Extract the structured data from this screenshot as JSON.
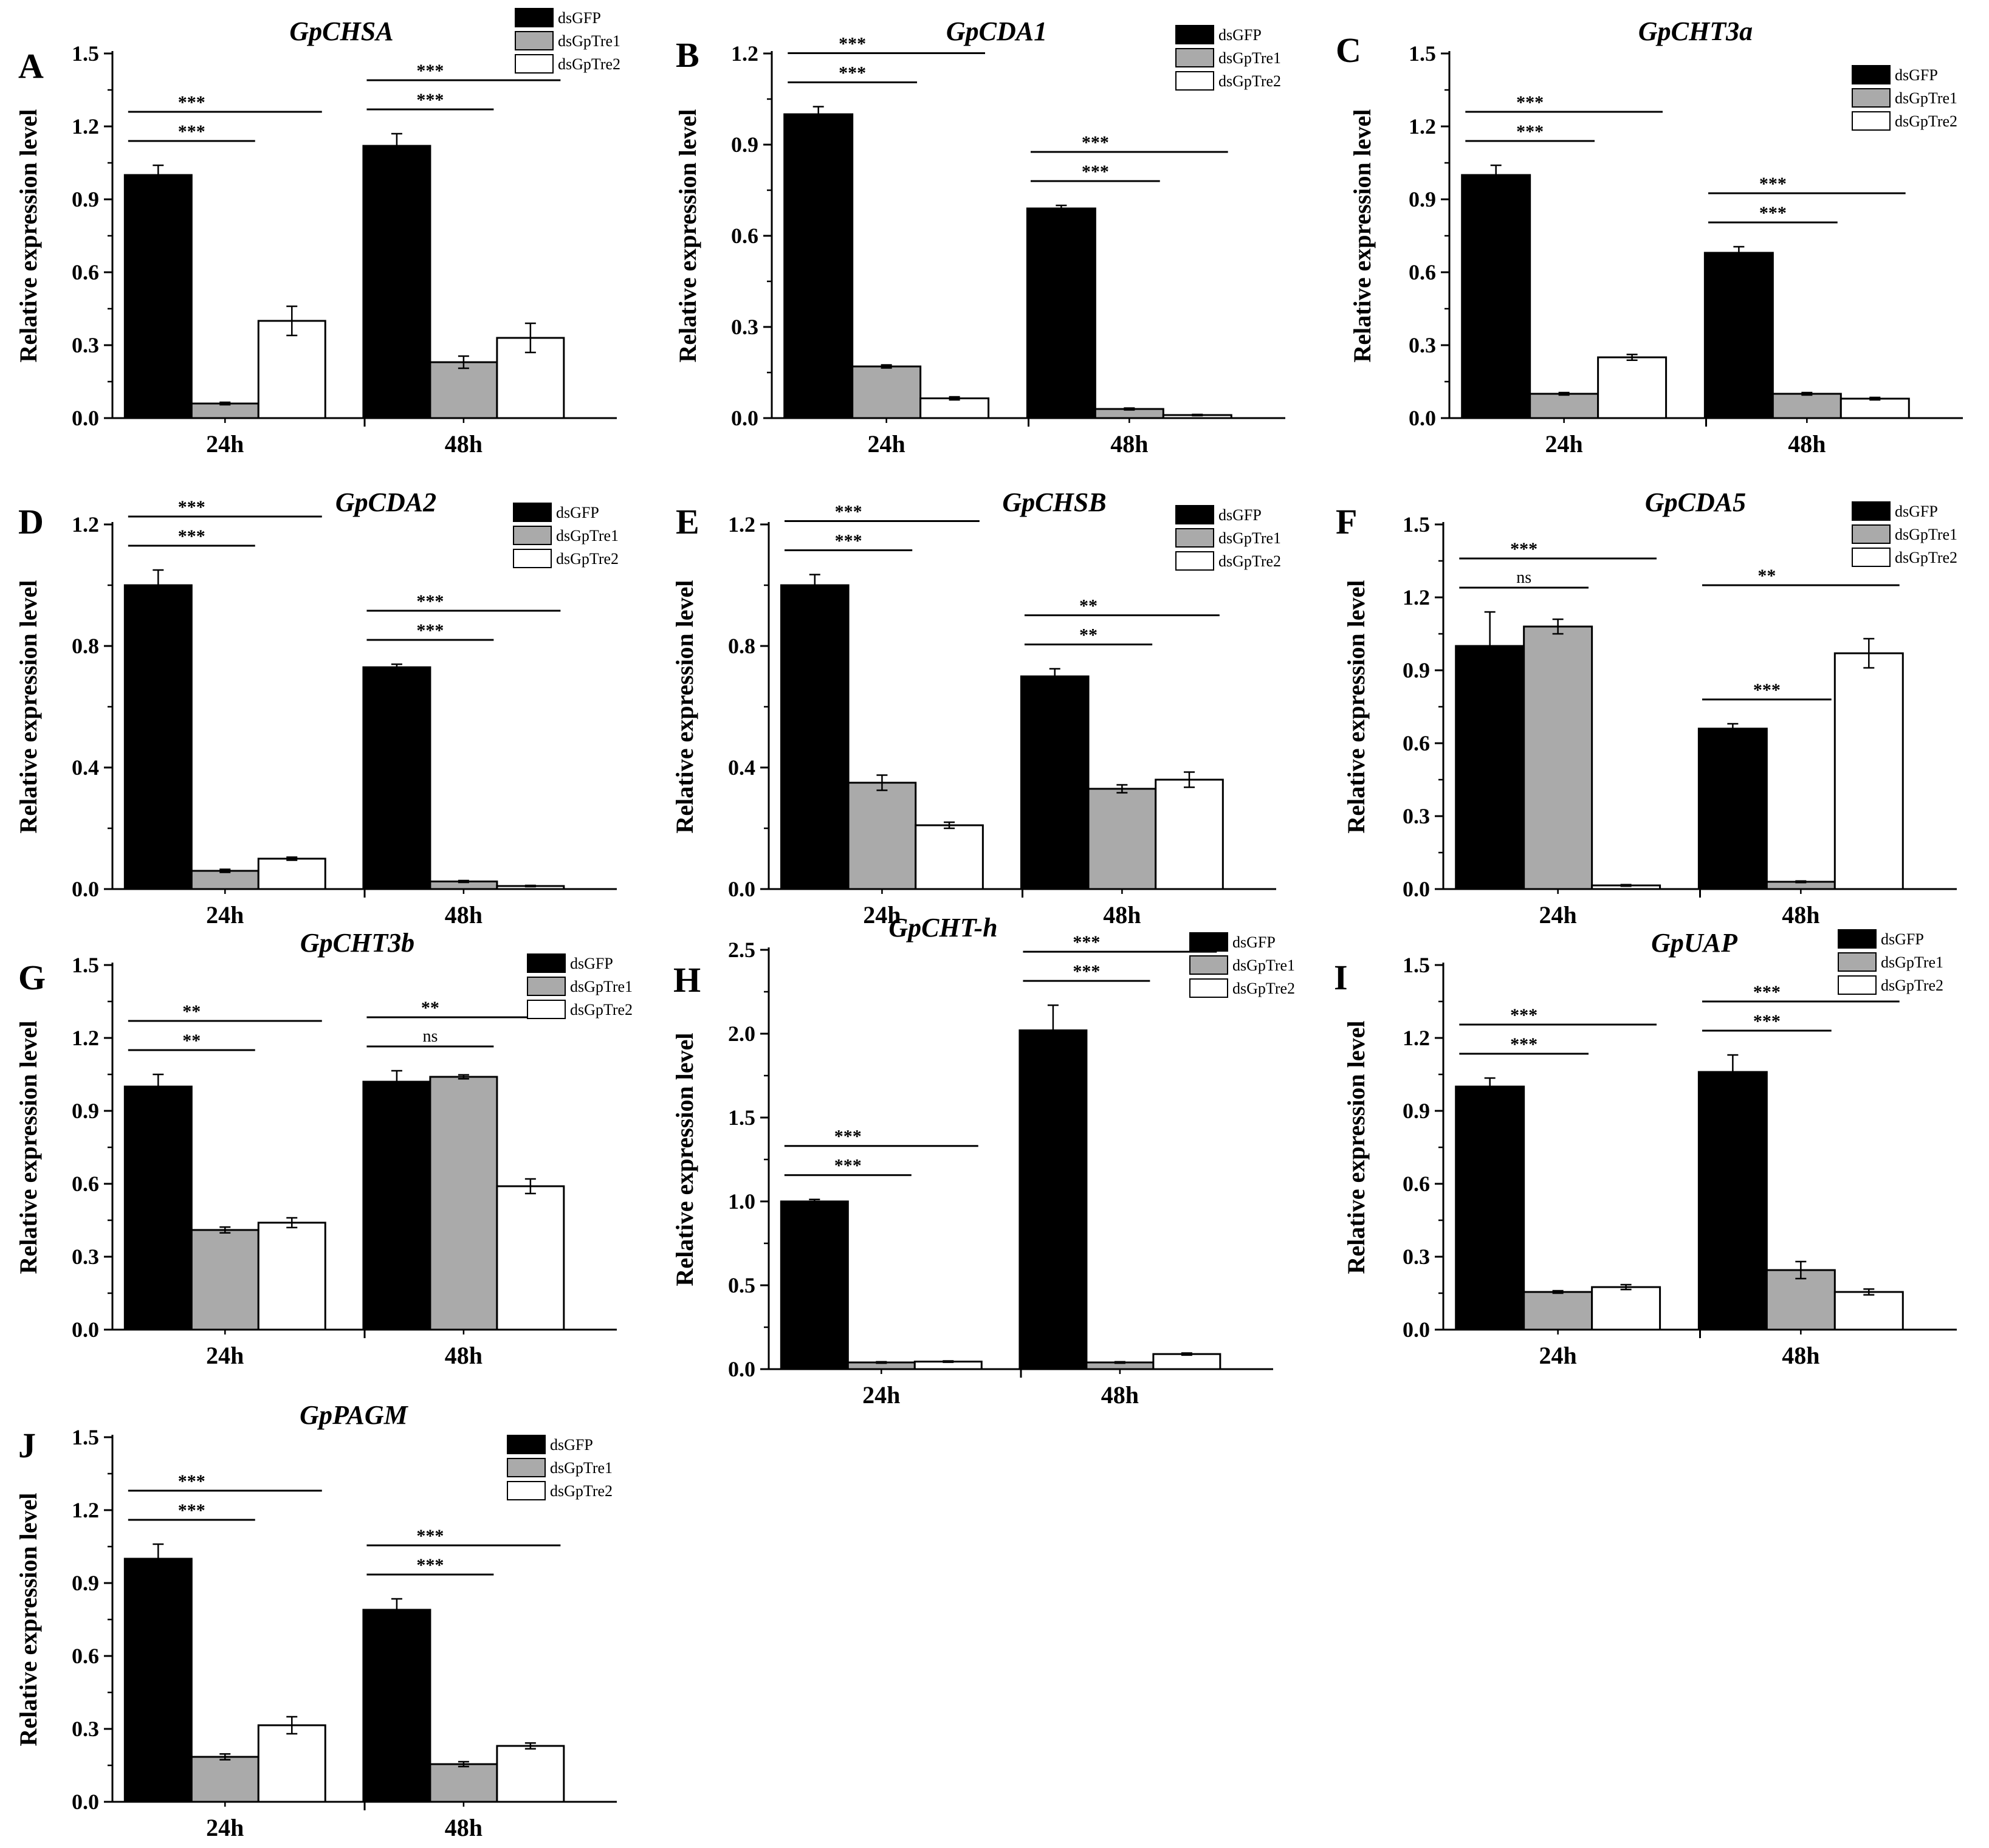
{
  "figure": {
    "series_names": [
      "dsGFP",
      "dsGpTre1",
      "dsGpTre2"
    ],
    "series_colors": [
      "#000000",
      "#aaaaaa",
      "#ffffff"
    ],
    "categories": [
      "24h",
      "48h"
    ],
    "ylabel": "Relative expression level"
  },
  "chart_data": [
    {
      "type": "bar",
      "letter": "A",
      "title": "GpCHSA",
      "xlabel": "",
      "ylabel": "Relative expression level",
      "categories": [
        "24h",
        "48h"
      ],
      "ylim": [
        0,
        1.5
      ],
      "yticks": [
        "0.0",
        "0.3",
        "0.6",
        "0.9",
        "1.2",
        "1.5"
      ],
      "series": [
        {
          "name": "dsGFP",
          "values": [
            1.0,
            1.12
          ],
          "errors": [
            0.04,
            0.05
          ]
        },
        {
          "name": "dsGpTre1",
          "values": [
            0.06,
            0.23
          ],
          "errors": [
            0.005,
            0.025
          ]
        },
        {
          "name": "dsGpTre2",
          "values": [
            0.4,
            0.33
          ],
          "errors": [
            0.06,
            0.06
          ]
        }
      ],
      "significance": [
        {
          "group": 0,
          "target": 1,
          "label": "***"
        },
        {
          "group": 0,
          "target": 2,
          "label": "***"
        },
        {
          "group": 1,
          "target": 1,
          "label": "***"
        },
        {
          "group": 1,
          "target": 2,
          "label": "***"
        }
      ]
    },
    {
      "type": "bar",
      "letter": "B",
      "title": "GpCDA1",
      "xlabel": "",
      "ylabel": "Relative expression level",
      "categories": [
        "24h",
        "48h"
      ],
      "ylim": [
        0,
        1.2
      ],
      "yticks": [
        "0.0",
        "0.3",
        "0.6",
        "0.9",
        "1.2"
      ],
      "series": [
        {
          "name": "dsGFP",
          "values": [
            1.0,
            0.69
          ],
          "errors": [
            0.025,
            0.01
          ]
        },
        {
          "name": "dsGpTre1",
          "values": [
            0.17,
            0.03
          ],
          "errors": [
            0.005,
            0.003
          ]
        },
        {
          "name": "dsGpTre2",
          "values": [
            0.065,
            0.01
          ],
          "errors": [
            0.005,
            0.002
          ]
        }
      ],
      "significance": [
        {
          "group": 0,
          "target": 1,
          "label": "***"
        },
        {
          "group": 0,
          "target": 2,
          "label": "***"
        },
        {
          "group": 1,
          "target": 1,
          "label": "***"
        },
        {
          "group": 1,
          "target": 2,
          "label": "***"
        }
      ]
    },
    {
      "type": "bar",
      "letter": "C",
      "title": "GpCHT3a",
      "xlabel": "",
      "ylabel": "Relative expression level",
      "categories": [
        "24h",
        "48h"
      ],
      "ylim": [
        0,
        1.5
      ],
      "yticks": [
        "0.0",
        "0.3",
        "0.6",
        "0.9",
        "1.2",
        "1.5"
      ],
      "series": [
        {
          "name": "dsGFP",
          "values": [
            1.0,
            0.68
          ],
          "errors": [
            0.04,
            0.025
          ]
        },
        {
          "name": "dsGpTre1",
          "values": [
            0.1,
            0.1
          ],
          "errors": [
            0.005,
            0.005
          ]
        },
        {
          "name": "dsGpTre2",
          "values": [
            0.25,
            0.08
          ],
          "errors": [
            0.012,
            0.005
          ]
        }
      ],
      "significance": [
        {
          "group": 0,
          "target": 1,
          "label": "***"
        },
        {
          "group": 0,
          "target": 2,
          "label": "***"
        },
        {
          "group": 1,
          "target": 1,
          "label": "***"
        },
        {
          "group": 1,
          "target": 2,
          "label": "***"
        }
      ]
    },
    {
      "type": "bar",
      "letter": "D",
      "title": "GpCDA2",
      "xlabel": "",
      "ylabel": "Relative expression level",
      "categories": [
        "24h",
        "48h"
      ],
      "ylim": [
        0,
        1.2
      ],
      "yticks": [
        "0.0",
        "0.4",
        "0.8",
        "1.2"
      ],
      "series": [
        {
          "name": "dsGFP",
          "values": [
            1.0,
            0.73
          ],
          "errors": [
            0.05,
            0.01
          ]
        },
        {
          "name": "dsGpTre1",
          "values": [
            0.06,
            0.025
          ],
          "errors": [
            0.005,
            0.003
          ]
        },
        {
          "name": "dsGpTre2",
          "values": [
            0.1,
            0.01
          ],
          "errors": [
            0.005,
            0.002
          ]
        }
      ],
      "significance": [
        {
          "group": 0,
          "target": 1,
          "label": "***"
        },
        {
          "group": 0,
          "target": 2,
          "label": "***"
        },
        {
          "group": 1,
          "target": 1,
          "label": "***"
        },
        {
          "group": 1,
          "target": 2,
          "label": "***"
        }
      ]
    },
    {
      "type": "bar",
      "letter": "E",
      "title": "GpCHSB",
      "xlabel": "",
      "ylabel": "Relative expression level",
      "categories": [
        "24h",
        "48h"
      ],
      "ylim": [
        0,
        1.2
      ],
      "yticks": [
        "0.0",
        "0.4",
        "0.8",
        "1.2"
      ],
      "series": [
        {
          "name": "dsGFP",
          "values": [
            1.0,
            0.7
          ],
          "errors": [
            0.035,
            0.025
          ]
        },
        {
          "name": "dsGpTre1",
          "values": [
            0.35,
            0.33
          ],
          "errors": [
            0.025,
            0.013
          ]
        },
        {
          "name": "dsGpTre2",
          "values": [
            0.21,
            0.36
          ],
          "errors": [
            0.01,
            0.025
          ]
        }
      ],
      "significance": [
        {
          "group": 0,
          "target": 1,
          "label": "***"
        },
        {
          "group": 0,
          "target": 2,
          "label": "***"
        },
        {
          "group": 1,
          "target": 1,
          "label": "**"
        },
        {
          "group": 1,
          "target": 2,
          "label": "**"
        }
      ]
    },
    {
      "type": "bar",
      "letter": "F",
      "title": "GpCDA5",
      "xlabel": "",
      "ylabel": "Relative expression level",
      "categories": [
        "24h",
        "48h"
      ],
      "ylim": [
        0,
        1.5
      ],
      "yticks": [
        "0.0",
        "0.3",
        "0.6",
        "0.9",
        "1.2",
        "1.5"
      ],
      "series": [
        {
          "name": "dsGFP",
          "values": [
            1.0,
            0.66
          ],
          "errors": [
            0.14,
            0.02
          ]
        },
        {
          "name": "dsGpTre1",
          "values": [
            1.08,
            0.03
          ],
          "errors": [
            0.03,
            0.003
          ]
        },
        {
          "name": "dsGpTre2",
          "values": [
            0.015,
            0.97
          ],
          "errors": [
            0.003,
            0.06
          ]
        }
      ],
      "significance": [
        {
          "group": 0,
          "target": 1,
          "label": "ns"
        },
        {
          "group": 0,
          "target": 2,
          "label": "***"
        },
        {
          "group": 1,
          "target": 1,
          "label": "***"
        },
        {
          "group": 1,
          "target": 2,
          "label": "**"
        }
      ]
    },
    {
      "type": "bar",
      "letter": "G",
      "title": "GpCHT3b",
      "xlabel": "",
      "ylabel": "Relative expression level",
      "categories": [
        "24h",
        "48h"
      ],
      "ylim": [
        0,
        1.5
      ],
      "yticks": [
        "0.0",
        "0.3",
        "0.6",
        "0.9",
        "1.2",
        "1.5"
      ],
      "series": [
        {
          "name": "dsGFP",
          "values": [
            1.0,
            1.02
          ],
          "errors": [
            0.05,
            0.045
          ]
        },
        {
          "name": "dsGpTre1",
          "values": [
            0.41,
            1.04
          ],
          "errors": [
            0.012,
            0.008
          ]
        },
        {
          "name": "dsGpTre2",
          "values": [
            0.44,
            0.59
          ],
          "errors": [
            0.02,
            0.03
          ]
        }
      ],
      "significance": [
        {
          "group": 0,
          "target": 1,
          "label": "**"
        },
        {
          "group": 0,
          "target": 2,
          "label": "**"
        },
        {
          "group": 1,
          "target": 1,
          "label": "ns"
        },
        {
          "group": 1,
          "target": 2,
          "label": "**"
        }
      ]
    },
    {
      "type": "bar",
      "letter": "H",
      "title": "GpCHT-h",
      "xlabel": "",
      "ylabel": "Relative expression level",
      "categories": [
        "24h",
        "48h"
      ],
      "ylim": [
        0,
        2.5
      ],
      "yticks": [
        "0.0",
        "0.5",
        "1.0",
        "1.5",
        "2.0",
        "2.5"
      ],
      "series": [
        {
          "name": "dsGFP",
          "values": [
            1.0,
            2.02
          ],
          "errors": [
            0.012,
            0.15
          ]
        },
        {
          "name": "dsGpTre1",
          "values": [
            0.04,
            0.04
          ],
          "errors": [
            0.004,
            0.004
          ]
        },
        {
          "name": "dsGpTre2",
          "values": [
            0.045,
            0.09
          ],
          "errors": [
            0.004,
            0.006
          ]
        }
      ],
      "significance": [
        {
          "group": 0,
          "target": 1,
          "label": "***"
        },
        {
          "group": 0,
          "target": 2,
          "label": "***"
        },
        {
          "group": 1,
          "target": 1,
          "label": "***"
        },
        {
          "group": 1,
          "target": 2,
          "label": "***"
        }
      ]
    },
    {
      "type": "bar",
      "letter": "I",
      "title": "GpUAP",
      "xlabel": "",
      "ylabel": "Relative expression level",
      "categories": [
        "24h",
        "48h"
      ],
      "ylim": [
        0,
        1.5
      ],
      "yticks": [
        "0.0",
        "0.3",
        "0.6",
        "0.9",
        "1.2",
        "1.5"
      ],
      "series": [
        {
          "name": "dsGFP",
          "values": [
            1.0,
            1.06
          ],
          "errors": [
            0.035,
            0.07
          ]
        },
        {
          "name": "dsGpTre1",
          "values": [
            0.155,
            0.245
          ],
          "errors": [
            0.005,
            0.035
          ]
        },
        {
          "name": "dsGpTre2",
          "values": [
            0.175,
            0.155
          ],
          "errors": [
            0.01,
            0.012
          ]
        }
      ],
      "significance": [
        {
          "group": 0,
          "target": 1,
          "label": "***"
        },
        {
          "group": 0,
          "target": 2,
          "label": "***"
        },
        {
          "group": 1,
          "target": 1,
          "label": "***"
        },
        {
          "group": 1,
          "target": 2,
          "label": "***"
        }
      ]
    },
    {
      "type": "bar",
      "letter": "J",
      "title": "GpPAGM",
      "xlabel": "",
      "ylabel": "Relative expression level",
      "categories": [
        "24h",
        "48h"
      ],
      "ylim": [
        0,
        1.5
      ],
      "yticks": [
        "0.0",
        "0.3",
        "0.6",
        "0.9",
        "1.2",
        "1.5"
      ],
      "series": [
        {
          "name": "dsGFP",
          "values": [
            1.0,
            0.79
          ],
          "errors": [
            0.06,
            0.045
          ]
        },
        {
          "name": "dsGpTre1",
          "values": [
            0.185,
            0.155
          ],
          "errors": [
            0.012,
            0.01
          ]
        },
        {
          "name": "dsGpTre2",
          "values": [
            0.315,
            0.23
          ],
          "errors": [
            0.035,
            0.012
          ]
        }
      ],
      "significance": [
        {
          "group": 0,
          "target": 1,
          "label": "***"
        },
        {
          "group": 0,
          "target": 2,
          "label": "***"
        },
        {
          "group": 1,
          "target": 1,
          "label": "***"
        },
        {
          "group": 1,
          "target": 2,
          "label": "***"
        }
      ]
    }
  ]
}
